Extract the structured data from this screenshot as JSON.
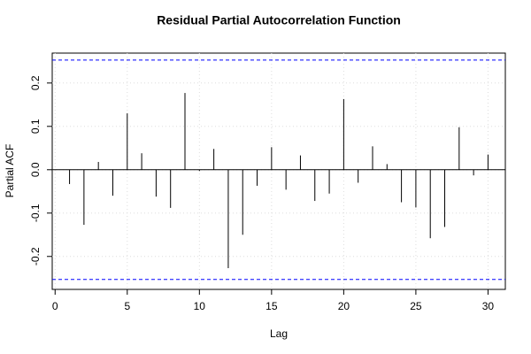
{
  "chart_data": {
    "type": "pacf",
    "title": "Residual Partial Autocorrelation Function",
    "x_label": "Lag",
    "y_label": "Partial ACF",
    "x": [
      1,
      2,
      3,
      4,
      5,
      6,
      7,
      8,
      9,
      10,
      11,
      12,
      13,
      14,
      15,
      16,
      17,
      18,
      19,
      20,
      21,
      22,
      23,
      24,
      25,
      26,
      27,
      28,
      29,
      30
    ],
    "values": [
      -0.033,
      -0.127,
      0.018,
      -0.06,
      0.13,
      0.038,
      -0.062,
      -0.088,
      0.177,
      -0.003,
      0.048,
      -0.227,
      -0.15,
      -0.037,
      0.052,
      -0.046,
      0.033,
      -0.072,
      -0.055,
      0.163,
      -0.03,
      0.054,
      0.013,
      -0.075,
      -0.087,
      -0.158,
      -0.132,
      0.098,
      -0.013,
      0.035
    ],
    "color": "#000000",
    "conf_limits": [
      -0.253,
      0.253
    ],
    "conf_color": "#0000ff",
    "xlim": [
      -0.2,
      31.2
    ],
    "xticks": [
      0,
      5,
      10,
      15,
      20,
      25,
      30
    ],
    "ylim": [
      -0.276,
      0.269
    ],
    "yticks": [
      -0.2,
      -0.1,
      {
        "value": 0,
        "label": "0.0"
      },
      0.1,
      0.2
    ],
    "grid": true
  }
}
